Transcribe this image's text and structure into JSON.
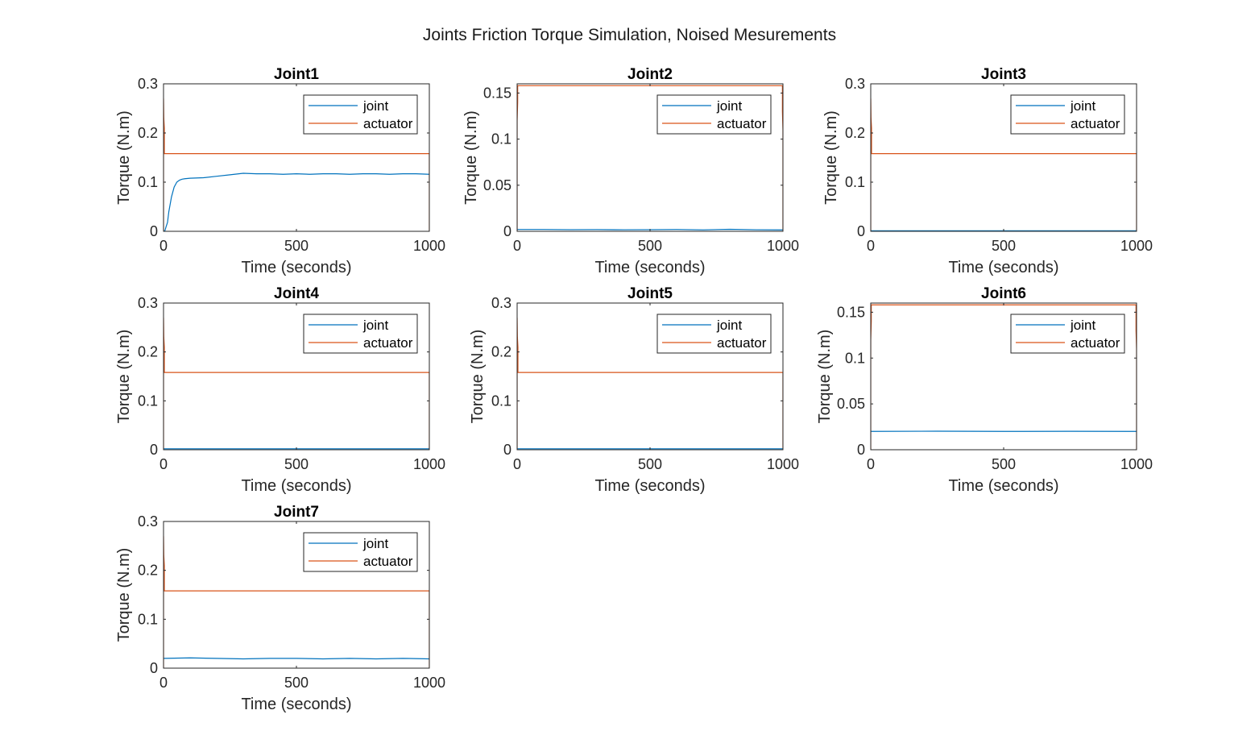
{
  "figure": {
    "title": "Joints Friction Torque Simulation, Noised Mesurements"
  },
  "colors": {
    "joint": "#0072BD",
    "actuator": "#D95319",
    "axis": "#262626",
    "background": "#ffffff"
  },
  "chart_data": [
    {
      "type": "line",
      "title": "Joint1",
      "xlabel": "Time (seconds)",
      "ylabel": "Torque (N.m)",
      "xlim": [
        0,
        1000
      ],
      "ylim": [
        0,
        0.3
      ],
      "xticks": [
        0,
        500,
        1000
      ],
      "yticks": [
        0,
        0.1,
        0.2,
        0.3
      ],
      "ytick_labels": [
        "0",
        "0.1",
        "0.2",
        "0.3"
      ],
      "legend": {
        "position": "top-right",
        "entries": [
          "joint",
          "actuator"
        ]
      },
      "series": [
        {
          "name": "joint",
          "color": "#0072BD",
          "x": [
            0,
            5,
            10,
            15,
            20,
            30,
            40,
            50,
            60,
            70,
            80,
            100,
            150,
            200,
            250,
            300,
            350,
            400,
            450,
            500,
            550,
            600,
            650,
            700,
            750,
            800,
            850,
            900,
            950,
            1000
          ],
          "y": [
            0,
            0.001,
            0.01,
            0.018,
            0.04,
            0.07,
            0.09,
            0.1,
            0.104,
            0.106,
            0.107,
            0.108,
            0.109,
            0.112,
            0.115,
            0.118,
            0.117,
            0.117,
            0.116,
            0.117,
            0.116,
            0.117,
            0.117,
            0.116,
            0.117,
            0.117,
            0.116,
            0.117,
            0.117,
            0.116
          ]
        },
        {
          "name": "actuator",
          "color": "#D95319",
          "x": [
            0,
            0,
            1,
            3,
            3,
            1000,
            1000
          ],
          "y": [
            0,
            0.27,
            0.23,
            0.21,
            0.158,
            0.158,
            0
          ]
        }
      ]
    },
    {
      "type": "line",
      "title": "Joint2",
      "xlabel": "Time (seconds)",
      "ylabel": "Torque (N.m)",
      "xlim": [
        0,
        1000
      ],
      "ylim": [
        0,
        0.16
      ],
      "xticks": [
        0,
        500,
        1000
      ],
      "yticks": [
        0,
        0.05,
        0.1,
        0.15
      ],
      "ytick_labels": [
        "0",
        "0.05",
        "0.1",
        "0.15"
      ],
      "legend": {
        "position": "top-right",
        "entries": [
          "joint",
          "actuator"
        ]
      },
      "series": [
        {
          "name": "joint",
          "color": "#0072BD",
          "x": [
            0,
            100,
            200,
            300,
            400,
            500,
            600,
            700,
            800,
            900,
            1000
          ],
          "y": [
            0.002,
            0.002,
            0.0018,
            0.0019,
            0.0017,
            0.0018,
            0.002,
            0.0016,
            0.0022,
            0.0017,
            0.0015
          ]
        },
        {
          "name": "actuator",
          "color": "#D95319",
          "x": [
            0,
            0,
            2,
            2,
            998,
            998,
            1000,
            1000
          ],
          "y": [
            0,
            0.12,
            0.14,
            0.158,
            0.158,
            0.13,
            0.11,
            0
          ]
        }
      ]
    },
    {
      "type": "line",
      "title": "Joint3",
      "xlabel": "Time (seconds)",
      "ylabel": "Torque (N.m)",
      "xlim": [
        0,
        1000
      ],
      "ylim": [
        0,
        0.3
      ],
      "xticks": [
        0,
        500,
        1000
      ],
      "yticks": [
        0,
        0.1,
        0.2,
        0.3
      ],
      "ytick_labels": [
        "0",
        "0.1",
        "0.2",
        "0.3"
      ],
      "legend": {
        "position": "top-right",
        "entries": [
          "joint",
          "actuator"
        ]
      },
      "series": [
        {
          "name": "joint",
          "color": "#0072BD",
          "x": [
            0,
            250,
            500,
            750,
            1000
          ],
          "y": [
            0.001,
            0.001,
            0.001,
            0.001,
            0.001
          ]
        },
        {
          "name": "actuator",
          "color": "#D95319",
          "x": [
            0,
            0,
            1,
            3,
            3,
            1000,
            1000
          ],
          "y": [
            0,
            0.27,
            0.23,
            0.21,
            0.158,
            0.158,
            0
          ]
        }
      ]
    },
    {
      "type": "line",
      "title": "Joint4",
      "xlabel": "Time (seconds)",
      "ylabel": "Torque (N.m)",
      "xlim": [
        0,
        1000
      ],
      "ylim": [
        0,
        0.3
      ],
      "xticks": [
        0,
        500,
        1000
      ],
      "yticks": [
        0,
        0.1,
        0.2,
        0.3
      ],
      "ytick_labels": [
        "0",
        "0.1",
        "0.2",
        "0.3"
      ],
      "legend": {
        "position": "top-right",
        "entries": [
          "joint",
          "actuator"
        ]
      },
      "series": [
        {
          "name": "joint",
          "color": "#0072BD",
          "x": [
            0,
            250,
            500,
            750,
            1000
          ],
          "y": [
            0.002,
            0.002,
            0.002,
            0.002,
            0.002
          ]
        },
        {
          "name": "actuator",
          "color": "#D95319",
          "x": [
            0,
            0,
            1,
            3,
            3,
            1000,
            1000
          ],
          "y": [
            0,
            0.27,
            0.23,
            0.21,
            0.158,
            0.158,
            0
          ]
        }
      ]
    },
    {
      "type": "line",
      "title": "Joint5",
      "xlabel": "Time (seconds)",
      "ylabel": "Torque (N.m)",
      "xlim": [
        0,
        1000
      ],
      "ylim": [
        0,
        0.3
      ],
      "xticks": [
        0,
        500,
        1000
      ],
      "yticks": [
        0,
        0.1,
        0.2,
        0.3
      ],
      "ytick_labels": [
        "0",
        "0.1",
        "0.2",
        "0.3"
      ],
      "legend": {
        "position": "top-right",
        "entries": [
          "joint",
          "actuator"
        ]
      },
      "series": [
        {
          "name": "joint",
          "color": "#0072BD",
          "x": [
            0,
            250,
            500,
            750,
            1000
          ],
          "y": [
            0.002,
            0.002,
            0.002,
            0.002,
            0.002
          ]
        },
        {
          "name": "actuator",
          "color": "#D95319",
          "x": [
            0,
            0,
            1,
            3,
            3,
            1000,
            1000
          ],
          "y": [
            0,
            0.27,
            0.23,
            0.21,
            0.158,
            0.158,
            0
          ]
        }
      ]
    },
    {
      "type": "line",
      "title": "Joint6",
      "xlabel": "Time (seconds)",
      "ylabel": "Torque (N.m)",
      "xlim": [
        0,
        1000
      ],
      "ylim": [
        0,
        0.16
      ],
      "xticks": [
        0,
        500,
        1000
      ],
      "yticks": [
        0,
        0.05,
        0.1,
        0.15
      ],
      "ytick_labels": [
        "0",
        "0.05",
        "0.1",
        "0.15"
      ],
      "legend": {
        "position": "top-right",
        "entries": [
          "joint",
          "actuator"
        ]
      },
      "series": [
        {
          "name": "joint",
          "color": "#0072BD",
          "x": [
            0,
            250,
            500,
            750,
            1000
          ],
          "y": [
            0.02,
            0.0202,
            0.02,
            0.0201,
            0.02
          ]
        },
        {
          "name": "actuator",
          "color": "#D95319",
          "x": [
            0,
            0,
            2,
            2,
            998,
            998,
            1000,
            1000
          ],
          "y": [
            0,
            0.12,
            0.14,
            0.158,
            0.158,
            0.13,
            0.11,
            0
          ]
        }
      ]
    },
    {
      "type": "line",
      "title": "Joint7",
      "xlabel": "Time (seconds)",
      "ylabel": "Torque (N.m)",
      "xlim": [
        0,
        1000
      ],
      "ylim": [
        0,
        0.3
      ],
      "xticks": [
        0,
        500,
        1000
      ],
      "yticks": [
        0,
        0.1,
        0.2,
        0.3
      ],
      "ytick_labels": [
        "0",
        "0.1",
        "0.2",
        "0.3"
      ],
      "legend": {
        "position": "top-right",
        "entries": [
          "joint",
          "actuator"
        ]
      },
      "series": [
        {
          "name": "joint",
          "color": "#0072BD",
          "x": [
            0,
            100,
            200,
            300,
            400,
            500,
            600,
            700,
            800,
            900,
            1000
          ],
          "y": [
            0.02,
            0.021,
            0.02,
            0.019,
            0.02,
            0.02,
            0.019,
            0.02,
            0.019,
            0.02,
            0.019
          ]
        },
        {
          "name": "actuator",
          "color": "#D95319",
          "x": [
            0,
            0,
            1,
            3,
            3,
            1000,
            1000
          ],
          "y": [
            0,
            0.27,
            0.23,
            0.21,
            0.158,
            0.158,
            0
          ]
        }
      ]
    }
  ]
}
